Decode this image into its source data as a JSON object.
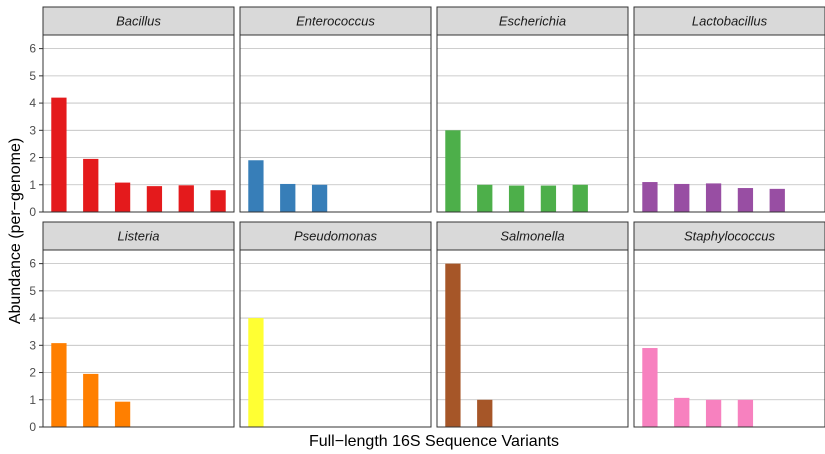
{
  "chart_data": {
    "type": "bar",
    "facet": "wrap",
    "xlabel": "Full−length 16S Sequence Variants",
    "ylabel": "Abundance (per−genome)",
    "ylim": [
      0,
      6.5
    ],
    "yticks": [
      "0",
      "1",
      "2",
      "3",
      "4",
      "5",
      "6"
    ],
    "grid": true,
    "legend": "none",
    "max_bars": 6,
    "panels": [
      {
        "name": "Bacillus",
        "color": "#E41A1C",
        "values": [
          4.2,
          1.95,
          1.08,
          0.95,
          0.98,
          0.8
        ]
      },
      {
        "name": "Enterococcus",
        "color": "#377EB8",
        "values": [
          1.9,
          1.03,
          1.0
        ]
      },
      {
        "name": "Escherichia",
        "color": "#4DAF4A",
        "values": [
          3.0,
          1.0,
          0.97,
          0.97,
          1.0
        ]
      },
      {
        "name": "Lactobacillus",
        "color": "#984EA3",
        "values": [
          1.1,
          1.03,
          1.05,
          0.88,
          0.85
        ]
      },
      {
        "name": "Listeria",
        "color": "#FF7F00",
        "values": [
          3.08,
          1.95,
          0.93
        ]
      },
      {
        "name": "Pseudomonas",
        "color": "#FFFF33",
        "values": [
          4.0
        ]
      },
      {
        "name": "Salmonella",
        "color": "#A65628",
        "values": [
          6.0,
          1.0
        ]
      },
      {
        "name": "Staphylococcus",
        "color": "#F781BF",
        "values": [
          2.9,
          1.07,
          1.0,
          1.0
        ]
      }
    ]
  }
}
